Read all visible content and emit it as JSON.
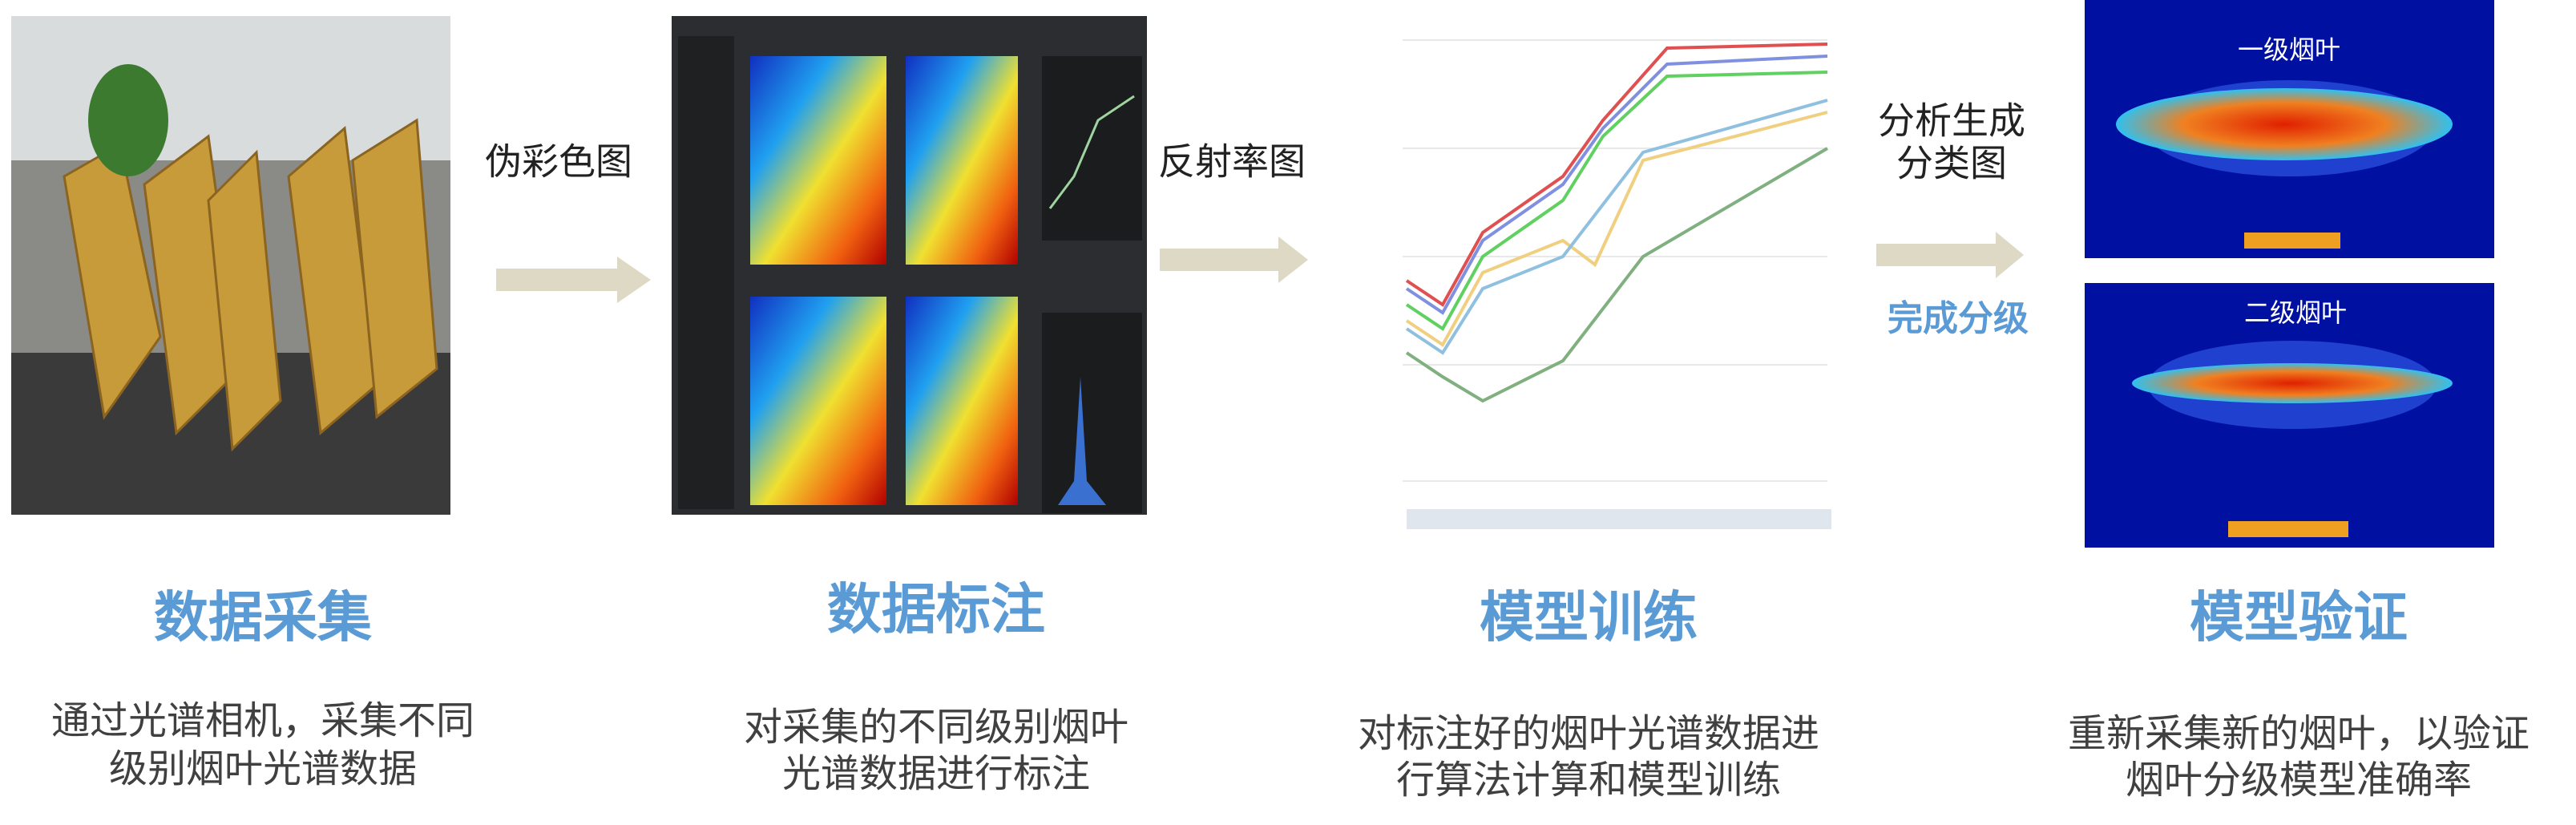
{
  "steps": [
    {
      "title": "数据采集",
      "description": [
        "通过光谱相机，采集不同",
        "级别烟叶光谱数据"
      ]
    },
    {
      "title": "数据标注",
      "description": [
        "对采集的不同级别烟叶",
        "光谱数据进行标注"
      ]
    },
    {
      "title": "模型训练",
      "description": [
        "对标注好的烟叶光谱数据进",
        "行算法计算和模型训练"
      ]
    },
    {
      "title": "模型验证",
      "description": [
        "重新采集新的烟叶，以验证",
        "烟叶分级模型准确率"
      ]
    }
  ],
  "arrows": [
    {
      "label": [
        "伪彩色图"
      ]
    },
    {
      "label": [
        "反射率图"
      ]
    },
    {
      "label": [
        "分析生成",
        "分类图"
      ],
      "note": "完成分级"
    }
  ],
  "result_labels": [
    "一级烟叶",
    "二级烟叶"
  ]
}
